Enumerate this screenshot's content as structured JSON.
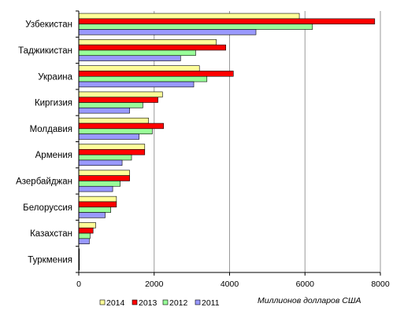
{
  "chart_data": {
    "type": "bar",
    "orientation": "horizontal",
    "title": "",
    "xlabel": "Миллионов долларов США",
    "ylabel": "",
    "xlim": [
      0,
      8000
    ],
    "xticks": [
      0,
      2000,
      4000,
      6000,
      8000
    ],
    "grid": true,
    "legend_position": "bottom",
    "categories": [
      "Узбекистан",
      "Таджикистан",
      "Украина",
      "Киргизия",
      "Молдавия",
      "Армения",
      "Азербайджан",
      "Белоруссия",
      "Казахстан",
      "Туркмения"
    ],
    "series": [
      {
        "name": "2014",
        "color": "#ffff99",
        "values": [
          5850,
          3650,
          3200,
          2220,
          1850,
          1750,
          1350,
          1000,
          450,
          10
        ]
      },
      {
        "name": "2013",
        "color": "#ff0000",
        "values": [
          7850,
          3900,
          4100,
          2100,
          2250,
          1750,
          1350,
          1000,
          380,
          10
        ]
      },
      {
        "name": "2012",
        "color": "#99ff99",
        "values": [
          6200,
          3100,
          3400,
          1700,
          1950,
          1400,
          1100,
          850,
          300,
          10
        ]
      },
      {
        "name": "2011",
        "color": "#9999ff",
        "values": [
          4700,
          2700,
          3050,
          1350,
          1600,
          1150,
          900,
          700,
          280,
          5
        ]
      }
    ]
  }
}
